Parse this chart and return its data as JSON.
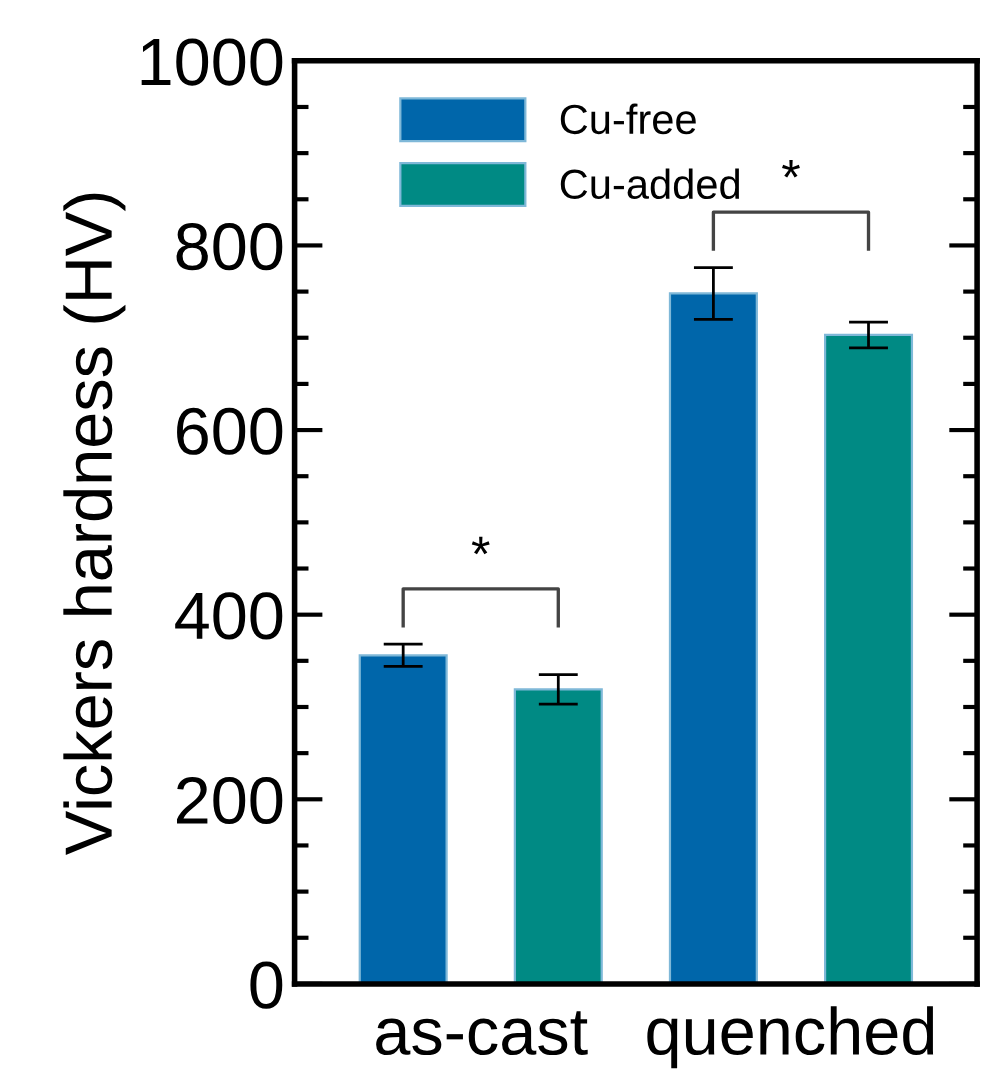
{
  "chart_data": {
    "type": "bar",
    "ylabel": "Vickers hardness (HV)",
    "categories": [
      "as-cast",
      "quenched"
    ],
    "series": [
      {
        "name": "Cu-free",
        "color": "#0066aa",
        "values": [
          356,
          748
        ],
        "errors": [
          12,
          28
        ]
      },
      {
        "name": "Cu-added",
        "color": "#008a84",
        "values": [
          319,
          703
        ],
        "errors": [
          16,
          14
        ]
      }
    ],
    "ylim": [
      0,
      1000
    ],
    "yticks": [
      0,
      200,
      400,
      600,
      800,
      1000
    ],
    "legend": "top left",
    "annotations": [
      "*",
      "*"
    ]
  }
}
